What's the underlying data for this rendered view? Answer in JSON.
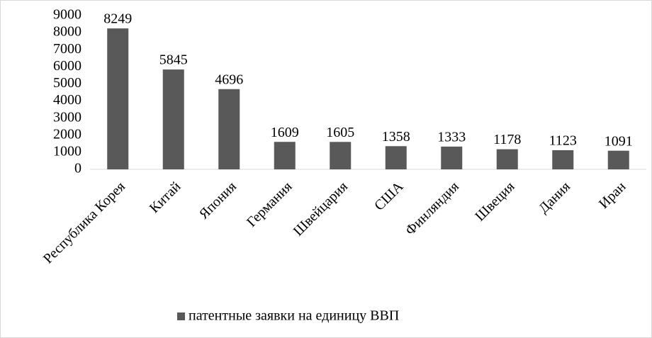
{
  "chart_data": {
    "type": "bar",
    "categories": [
      "Республика Корея",
      "Китай",
      "Япония",
      "Германия",
      "Швейцария",
      "США",
      "Финляндия",
      "Швеция",
      "Дания",
      "Иран"
    ],
    "series": [
      {
        "name": "патентные заявки на единицу ВВП",
        "color": "#595959",
        "values": [
          8249,
          5845,
          4696,
          1609,
          1605,
          1358,
          1333,
          1178,
          1123,
          1091
        ]
      }
    ],
    "ylim": [
      0,
      9000
    ],
    "yticks": [
      0,
      1000,
      2000,
      3000,
      4000,
      5000,
      6000,
      7000,
      8000,
      9000
    ],
    "legend": "bottom",
    "data_labels": true
  }
}
